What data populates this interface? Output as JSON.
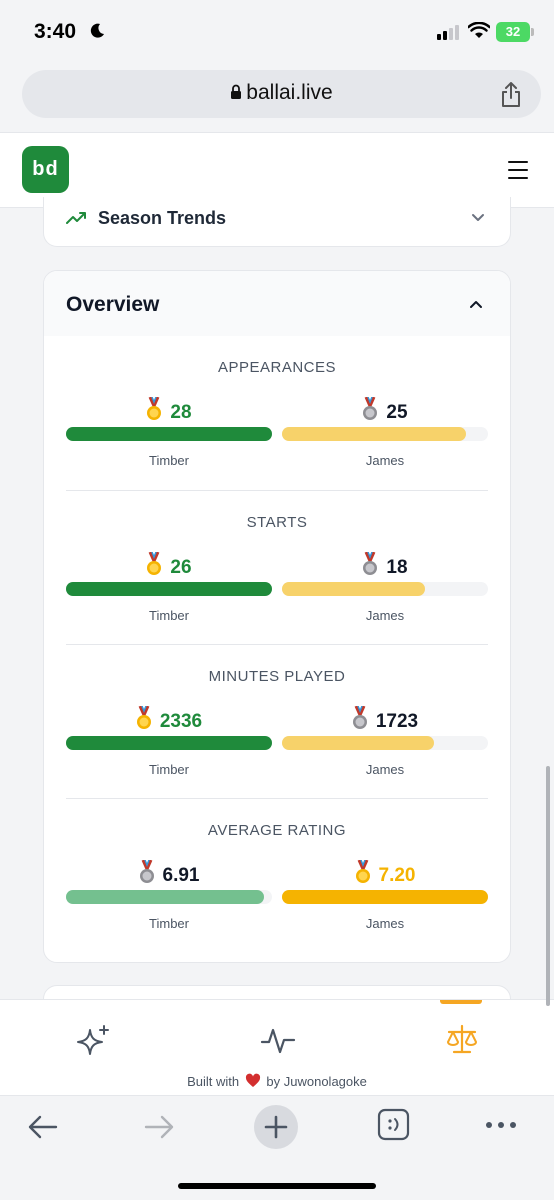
{
  "status_bar": {
    "time": "3:40",
    "battery": "32"
  },
  "browser": {
    "url": "ballai.live"
  },
  "header": {
    "logo_text": "bd"
  },
  "trends": {
    "label": "Season Trends"
  },
  "overview": {
    "title": "Overview",
    "stats": [
      {
        "title": "APPEARANCES",
        "left": {
          "name": "Timber",
          "value": "28",
          "fill": 1.0
        },
        "right": {
          "name": "James",
          "value": "25",
          "fill": 0.893
        }
      },
      {
        "title": "STARTS",
        "left": {
          "name": "Timber",
          "value": "26",
          "fill": 1.0
        },
        "right": {
          "name": "James",
          "value": "18",
          "fill": 0.692
        }
      },
      {
        "title": "MINUTES PLAYED",
        "left": {
          "name": "Timber",
          "value": "2336",
          "fill": 1.0
        },
        "right": {
          "name": "James",
          "value": "1723",
          "fill": 0.738
        }
      },
      {
        "title": "AVERAGE RATING",
        "left": {
          "name": "Timber",
          "value": "6.91",
          "fill": 0.96
        },
        "right": {
          "name": "James",
          "value": "7.20",
          "fill": 1.0
        }
      }
    ]
  },
  "footer": {
    "prefix": "Built with",
    "suffix": "by Juwonolagoke"
  },
  "colors": {
    "green": "#1f8a3b",
    "light_green": "#74c08f",
    "yellow": "#f7d26a",
    "gold": "#f5b301",
    "accent": "#f5a623"
  }
}
